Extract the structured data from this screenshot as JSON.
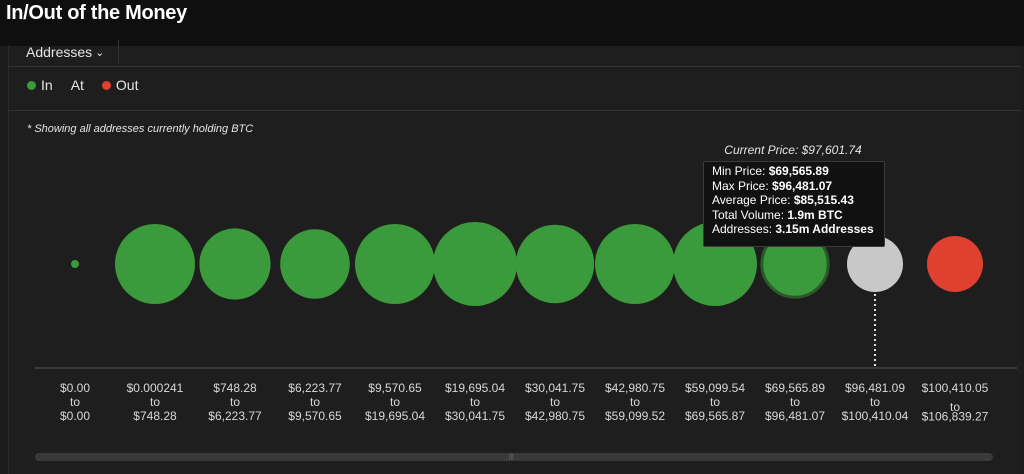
{
  "header": {
    "title": "In/Out of the Money"
  },
  "toolbar": {
    "metric": "Addresses"
  },
  "legend": [
    {
      "label": "In",
      "color": "#3b9a3b"
    },
    {
      "label": "At",
      "color": "#c8c8c8"
    },
    {
      "label": "Out",
      "color": "#e0402f"
    }
  ],
  "note": "* Showing all addresses currently holding BTC",
  "tooltip": {
    "min_label": "Min Price: ",
    "min_value": "$69,565.89",
    "max_label": "Max Price: ",
    "max_value": "$96,481.07",
    "avg_label": "Average Price: ",
    "avg_value": "$85,515.43",
    "vol_label": "Total Volume: ",
    "vol_value": "1.9m BTC",
    "addr_label": "Addresses: ",
    "addr_value": "3.15m Addresses"
  },
  "chart_data": {
    "type": "bubble",
    "title": "In/Out of the Money",
    "current_price_label": "Current Price: $97,601.74",
    "current_price": 97601.74,
    "metric": "Addresses",
    "buckets": [
      {
        "low": "$0.00",
        "high": "$0.00",
        "status": "In",
        "size": 0.1
      },
      {
        "low": "$0.000241",
        "high": "$748.28",
        "status": "In",
        "size": 1.0
      },
      {
        "low": "$748.28",
        "high": "$6,223.77",
        "status": "In",
        "size": 0.89
      },
      {
        "low": "$6,223.77",
        "high": "$9,570.65",
        "status": "In",
        "size": 0.87
      },
      {
        "low": "$9,570.65",
        "high": "$19,695.04",
        "status": "In",
        "size": 1.0
      },
      {
        "low": "$19,695.04",
        "high": "$30,041.75",
        "status": "In",
        "size": 1.05
      },
      {
        "low": "$30,041.75",
        "high": "$42,980.75",
        "status": "In",
        "size": 0.98
      },
      {
        "low": "$42,980.75",
        "high": "$59,099.52",
        "status": "In",
        "size": 1.0
      },
      {
        "low": "$59,099.54",
        "high": "$69,565.87",
        "status": "In",
        "size": 1.05
      },
      {
        "low": "$69,565.89",
        "high": "$96,481.07",
        "status": "In",
        "size": 0.83,
        "addresses": "3.15m Addresses",
        "volume": "1.9m BTC"
      },
      {
        "low": "$96,481.09",
        "high": "$100,410.04",
        "status": "At",
        "size": 0.7
      },
      {
        "low": "$100,410.05",
        "high": "$106,839.27",
        "status": "Out",
        "size": 0.7
      }
    ]
  }
}
